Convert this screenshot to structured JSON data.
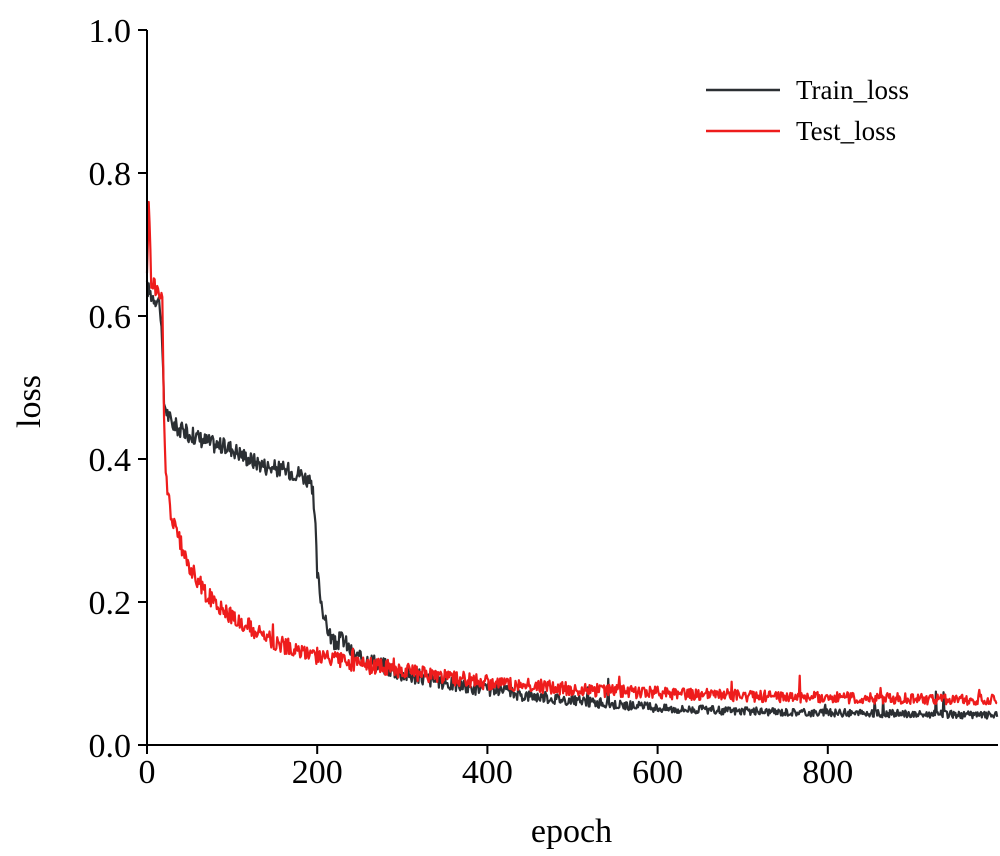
{
  "chart_data": {
    "type": "line",
    "title": "",
    "xlabel": "epoch",
    "ylabel": "loss",
    "xlim": [
      0,
      1000
    ],
    "ylim": [
      0.0,
      1.0
    ],
    "x_ticks": [
      0,
      200,
      400,
      600,
      800
    ],
    "x_tick_labels": [
      "0",
      "200",
      "400",
      "600",
      "800"
    ],
    "y_ticks": [
      0.0,
      0.2,
      0.4,
      0.6,
      0.8,
      1.0
    ],
    "y_tick_labels": [
      "0.0",
      "0.2",
      "0.4",
      "0.6",
      "0.8",
      "1.0"
    ],
    "grid": false,
    "legend_position": "top-right",
    "series": [
      {
        "name": "Train_loss",
        "color": "#2b2f33",
        "x": [
          0,
          5,
          10,
          15,
          18,
          20,
          25,
          30,
          40,
          50,
          60,
          80,
          100,
          120,
          140,
          160,
          180,
          185,
          190,
          195,
          198,
          200,
          205,
          210,
          220,
          230,
          240,
          250,
          260,
          280,
          300,
          320,
          340,
          360,
          380,
          400,
          420,
          440,
          460,
          480,
          500,
          520,
          540,
          560,
          580,
          600,
          620,
          640,
          660,
          680,
          700,
          720,
          740,
          760,
          780,
          800,
          820,
          840,
          860,
          880,
          900,
          920,
          940,
          960,
          980,
          999
        ],
        "y": [
          0.64,
          0.63,
          0.625,
          0.62,
          0.55,
          0.48,
          0.46,
          0.45,
          0.44,
          0.435,
          0.43,
          0.42,
          0.415,
          0.4,
          0.39,
          0.385,
          0.38,
          0.375,
          0.37,
          0.35,
          0.3,
          0.24,
          0.2,
          0.17,
          0.14,
          0.15,
          0.13,
          0.12,
          0.12,
          0.11,
          0.1,
          0.095,
          0.09,
          0.085,
          0.08,
          0.078,
          0.075,
          0.07,
          0.068,
          0.065,
          0.063,
          0.06,
          0.058,
          0.056,
          0.054,
          0.052,
          0.05,
          0.05,
          0.049,
          0.048,
          0.047,
          0.047,
          0.046,
          0.046,
          0.045,
          0.045,
          0.045,
          0.044,
          0.044,
          0.044,
          0.043,
          0.043,
          0.043,
          0.042,
          0.042,
          0.042
        ]
      },
      {
        "name": "Test_loss",
        "color": "#ee1c1c",
        "x": [
          0,
          2,
          5,
          10,
          15,
          18,
          20,
          22,
          25,
          30,
          35,
          40,
          45,
          50,
          60,
          70,
          80,
          100,
          120,
          140,
          160,
          180,
          200,
          220,
          240,
          260,
          280,
          300,
          320,
          340,
          360,
          380,
          400,
          420,
          440,
          460,
          480,
          500,
          520,
          540,
          560,
          580,
          600,
          620,
          640,
          660,
          680,
          700,
          720,
          740,
          760,
          780,
          800,
          820,
          840,
          860,
          880,
          900,
          920,
          940,
          960,
          980,
          999
        ],
        "y": [
          0.65,
          0.76,
          0.65,
          0.64,
          0.63,
          0.62,
          0.45,
          0.38,
          0.35,
          0.31,
          0.3,
          0.28,
          0.26,
          0.25,
          0.23,
          0.21,
          0.2,
          0.18,
          0.165,
          0.15,
          0.14,
          0.13,
          0.125,
          0.12,
          0.115,
          0.11,
          0.11,
          0.105,
          0.1,
          0.097,
          0.094,
          0.09,
          0.088,
          0.086,
          0.084,
          0.082,
          0.08,
          0.078,
          0.077,
          0.076,
          0.075,
          0.074,
          0.073,
          0.072,
          0.071,
          0.07,
          0.07,
          0.069,
          0.068,
          0.068,
          0.067,
          0.067,
          0.066,
          0.066,
          0.066,
          0.065,
          0.065,
          0.065,
          0.064,
          0.064,
          0.063,
          0.063,
          0.063
        ]
      }
    ]
  }
}
